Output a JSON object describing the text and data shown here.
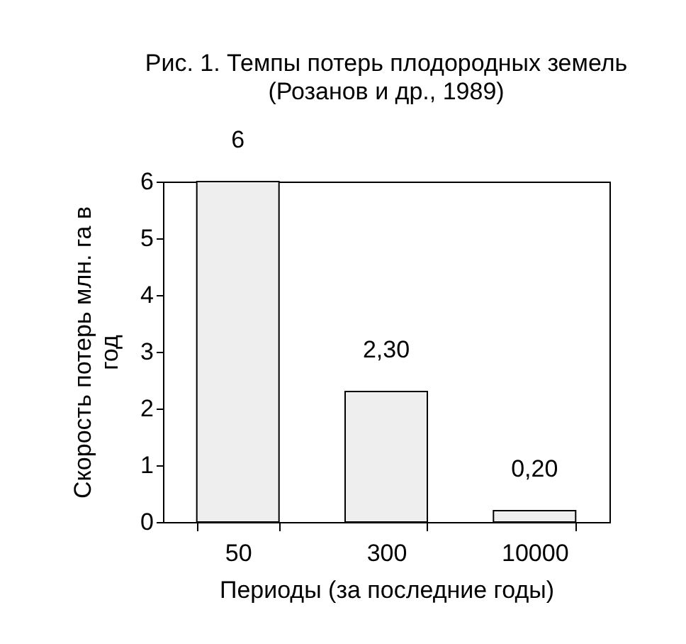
{
  "chart_data": {
    "type": "bar",
    "title": "Рис. 1. Темпы потерь плодородных земель",
    "subtitle": "(Розанов и др., 1989)",
    "xlabel": "Периоды (за последние годы)",
    "ylabel": "Скорость потерь млн. га в год",
    "categories": [
      "50",
      "300",
      "10000"
    ],
    "values": [
      6,
      2.3,
      0.2
    ],
    "value_labels": [
      "6",
      "2,30",
      "0,20"
    ],
    "color": "#eeeeee",
    "ylim": [
      0,
      6
    ],
    "yticks": [
      0,
      1,
      2,
      3,
      4,
      5,
      6
    ]
  }
}
